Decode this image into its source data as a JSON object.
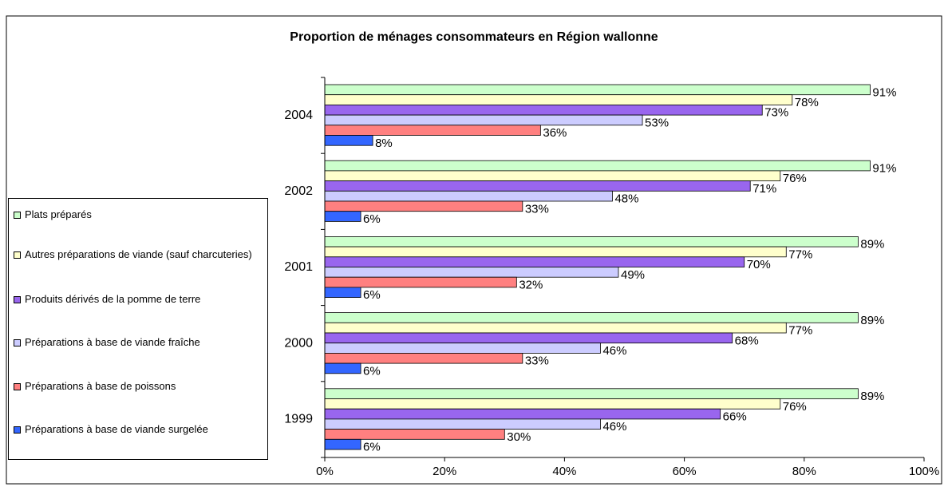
{
  "chart_data": {
    "type": "hbar",
    "title": "Proportion de ménages consommateurs en Région wallonne",
    "categories": [
      "1999",
      "2000",
      "2001",
      "2002",
      "2004"
    ],
    "series": [
      {
        "name": "Plats préparés",
        "color": "#ccffcc",
        "values": [
          89,
          89,
          89,
          91,
          91
        ],
        "value_labels": [
          "89%",
          "89%",
          "89%",
          "91%",
          "91%"
        ]
      },
      {
        "name": "Autres préparations de viande (sauf charcuteries)",
        "color": "#ffffcc",
        "values": [
          76,
          77,
          77,
          76,
          78
        ],
        "value_labels": [
          "76%",
          "77%",
          "77%",
          "76%",
          "78%"
        ]
      },
      {
        "name": "Produits dérivés de la pomme de terre",
        "color": "#9966ee",
        "values": [
          66,
          68,
          70,
          71,
          73
        ],
        "value_labels": [
          "66%",
          "68%",
          "70%",
          "71%",
          "73%"
        ]
      },
      {
        "name": "Préparations à base de viande fraîche",
        "color": "#ccccff",
        "values": [
          46,
          46,
          49,
          48,
          53
        ],
        "value_labels": [
          "46%",
          "46%",
          "49%",
          "48%",
          "53%"
        ]
      },
      {
        "name": "Préparations à base de poissons",
        "color": "#ff8080",
        "values": [
          30,
          33,
          32,
          33,
          36
        ],
        "value_labels": [
          "30%",
          "33%",
          "32%",
          "33%",
          "36%"
        ]
      },
      {
        "name": "Préparations à base de viande surgelée",
        "color": "#3366ff",
        "values": [
          6,
          6,
          6,
          6,
          8
        ],
        "value_labels": [
          "6%",
          "6%",
          "6%",
          "6%",
          "8%"
        ]
      }
    ],
    "xlim": [
      0,
      100
    ],
    "xticks": [
      {
        "value": 0,
        "label": "0%"
      },
      {
        "value": 20,
        "label": "20%"
      },
      {
        "value": 40,
        "label": "40%"
      },
      {
        "value": 60,
        "label": "60%"
      },
      {
        "value": 80,
        "label": "80%"
      },
      {
        "value": 100,
        "label": "100%"
      }
    ],
    "legend": "left"
  }
}
